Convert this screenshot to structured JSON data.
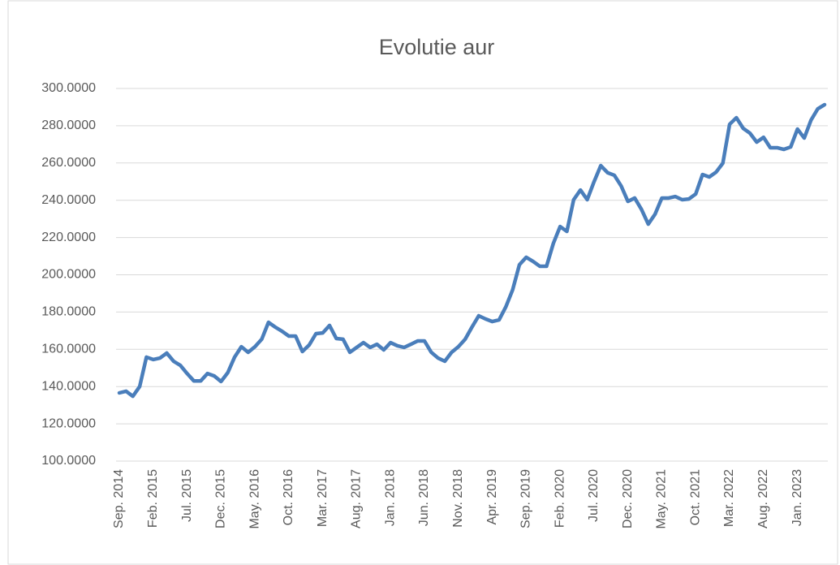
{
  "chart_data": {
    "type": "line",
    "title": "Evolutie aur",
    "categories": [
      "Sep. 2014",
      null,
      null,
      null,
      null,
      "Feb. 2015",
      null,
      null,
      null,
      null,
      "Jul. 2015",
      null,
      null,
      null,
      null,
      "Dec. 2015",
      null,
      null,
      null,
      null,
      "May. 2016",
      null,
      null,
      null,
      null,
      "Oct. 2016",
      null,
      null,
      null,
      null,
      "Mar. 2017",
      null,
      null,
      null,
      null,
      "Aug. 2017",
      null,
      null,
      null,
      null,
      "Jan. 2018",
      null,
      null,
      null,
      null,
      "Jun. 2018",
      null,
      null,
      null,
      null,
      "Nov. 2018",
      null,
      null,
      null,
      null,
      "Apr. 2019",
      null,
      null,
      null,
      null,
      "Sep. 2019",
      null,
      null,
      null,
      null,
      "Feb. 2020",
      null,
      null,
      null,
      null,
      "Jul. 2020",
      null,
      null,
      null,
      null,
      "Dec. 2020",
      null,
      null,
      null,
      null,
      "May. 2021",
      null,
      null,
      null,
      null,
      "Oct. 2021",
      null,
      null,
      null,
      null,
      "Mar. 2022",
      null,
      null,
      null,
      null,
      "Aug. 2022",
      null,
      null,
      null,
      null,
      "Jan. 2023",
      null,
      null,
      null,
      null
    ],
    "values": [
      136.6,
      137.5,
      134.8,
      140,
      155.8,
      154.5,
      155.3,
      158,
      153.6,
      151.4,
      147,
      143,
      143,
      147,
      145.7,
      142.7,
      147.5,
      155.8,
      161.4,
      158.4,
      161.4,
      165.4,
      174.5,
      171.9,
      169.7,
      167.1,
      167.1,
      158.8,
      162.3,
      168.4,
      168.8,
      172.8,
      165.8,
      165.4,
      158.4,
      161,
      163.6,
      161,
      162.7,
      159.7,
      163.6,
      161.9,
      161,
      162.7,
      164.5,
      164.5,
      158.4,
      155.3,
      153.6,
      158.4,
      161.4,
      165.4,
      171.9,
      178,
      176.3,
      174.9,
      175.8,
      182.8,
      191.9,
      205.4,
      209.4,
      207.2,
      204.6,
      204.6,
      216.8,
      225.9,
      223.3,
      240.3,
      245.5,
      240.3,
      249.9,
      258.6,
      254.8,
      253.4,
      247.7,
      239.4,
      241.2,
      235.1,
      227.2,
      232.5,
      241.2,
      241.2,
      242,
      240.3,
      240.7,
      243.4,
      253.8,
      252.5,
      255.1,
      259.9,
      280.8,
      284.3,
      278.6,
      276,
      271.2,
      273.8,
      268.2,
      268.2,
      267.3,
      268.6,
      278.2,
      273.4,
      283,
      289.1,
      291.3
    ],
    "color": "#4a7ebb",
    "ylim": [
      100,
      300
    ],
    "yticks": [
      {
        "value": 100,
        "label": "100.0000"
      },
      {
        "value": 120,
        "label": "120.0000"
      },
      {
        "value": 140,
        "label": "140.0000"
      },
      {
        "value": 160,
        "label": "160.0000"
      },
      {
        "value": 180,
        "label": "180.0000"
      },
      {
        "value": 200,
        "label": "200.0000"
      },
      {
        "value": 220,
        "label": "220.0000"
      },
      {
        "value": 240,
        "label": "240.0000"
      },
      {
        "value": 260,
        "label": "260.0000"
      },
      {
        "value": 280,
        "label": "280.0000"
      },
      {
        "value": 300,
        "label": "300.0000"
      }
    ],
    "grid": true
  }
}
